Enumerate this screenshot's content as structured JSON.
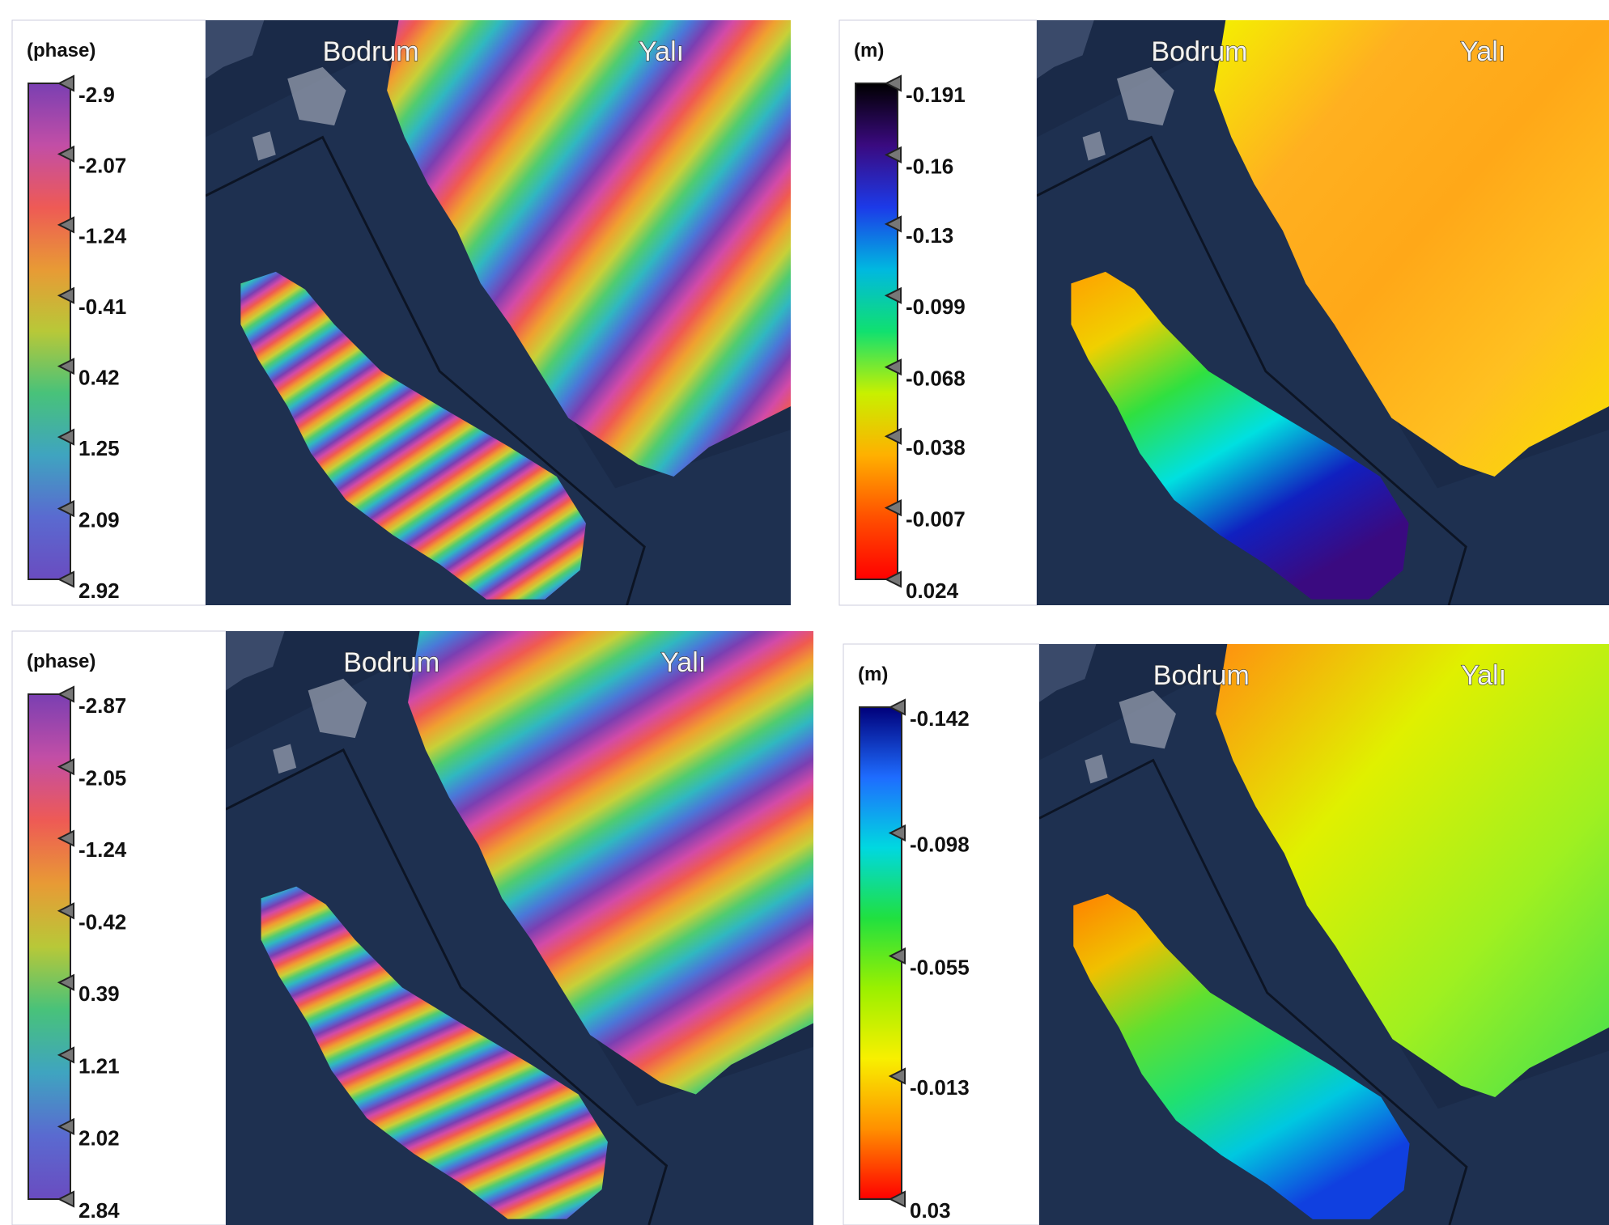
{
  "panels": [
    {
      "unit": "(phase)",
      "ticks": [
        -2.9,
        -2.07,
        -1.24,
        -0.41,
        0.42,
        1.25,
        2.09,
        2.92
      ],
      "colors": [
        "#7a3fb2",
        "#c24ea6",
        "#ee5a55",
        "#e89a35",
        "#b8c838",
        "#48c27a",
        "#3fa4c0",
        "#5a6ad0",
        "#6a4cc0"
      ],
      "places": [
        "Bodrum",
        "Yalı"
      ]
    },
    {
      "unit": "(m)",
      "ticks": [
        -0.191,
        -0.16,
        -0.13,
        -0.099,
        -0.068,
        -0.038,
        -0.007,
        0.024
      ],
      "colors": [
        "#000000",
        "#3a0a80",
        "#1c3ae8",
        "#00b8e0",
        "#10e070",
        "#c8f000",
        "#ffb000",
        "#ff5000",
        "#ff0000"
      ],
      "places": [
        "Bodrum",
        "Yalı"
      ]
    },
    {
      "unit": "(phase)",
      "ticks": [
        -2.87,
        -2.05,
        -1.24,
        -0.42,
        0.39,
        1.21,
        2.02,
        2.84
      ],
      "colors": [
        "#7a3fb2",
        "#c24ea6",
        "#ee5a55",
        "#e89a35",
        "#b8c838",
        "#48c27a",
        "#3fa4c0",
        "#5a6ad0",
        "#6a4cc0"
      ],
      "places": [
        "Bodrum",
        "Yalı"
      ]
    },
    {
      "unit": "(m)",
      "ticks": [
        -0.142,
        -0.098,
        -0.055,
        -0.013,
        0.03
      ],
      "colors": [
        "#00007a",
        "#1e6cff",
        "#00d8e0",
        "#20e040",
        "#9af000",
        "#f8f000",
        "#ff9000",
        "#ff0000"
      ],
      "places": [
        "Bodrum",
        "Yalı"
      ]
    }
  ]
}
